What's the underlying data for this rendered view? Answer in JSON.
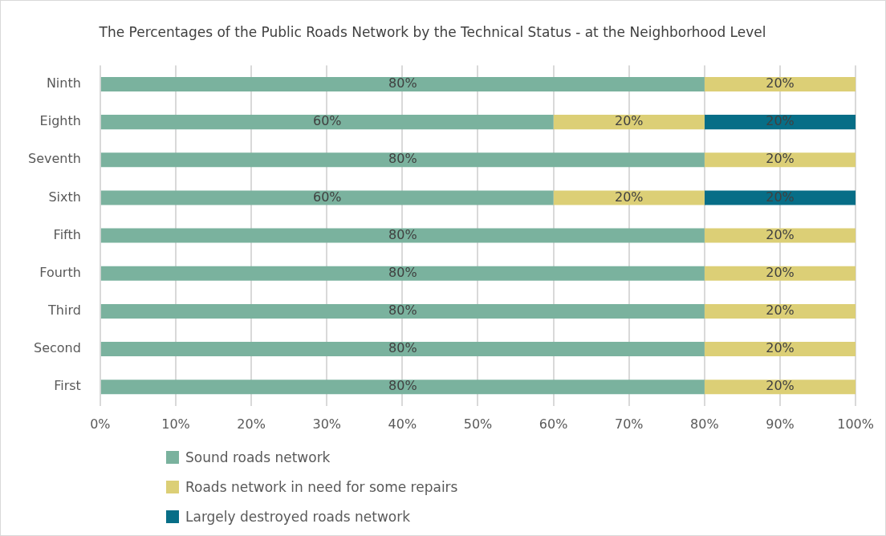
{
  "chart_data": {
    "type": "bar",
    "orientation": "horizontal",
    "stacked": true,
    "title": "The Percentages of the Public Roads Network by the Technical Status - at the Neighborhood Level",
    "categories": [
      "Ninth",
      "Eighth",
      "Seventh",
      "Sixth",
      "Fifth",
      "Fourth",
      "Third",
      "Second",
      "First"
    ],
    "series": [
      {
        "name": "Sound roads network",
        "color": "#7ab29e",
        "values": [
          80,
          60,
          80,
          60,
          80,
          80,
          80,
          80,
          80
        ],
        "value_labels": [
          "80%",
          "60%",
          "80%",
          "60%",
          "80%",
          "80%",
          "80%",
          "80%",
          "80%"
        ]
      },
      {
        "name": "Roads network in need for some repairs",
        "color": "#dccf76",
        "values": [
          20,
          20,
          20,
          20,
          20,
          20,
          20,
          20,
          20
        ],
        "value_labels": [
          "20%",
          "20%",
          "20%",
          "20%",
          "20%",
          "20%",
          "20%",
          "20%",
          "20%"
        ]
      },
      {
        "name": "Largely destroyed roads network",
        "color": "#076e87",
        "values": [
          null,
          20,
          null,
          20,
          null,
          null,
          null,
          null,
          null
        ],
        "value_labels": [
          null,
          "20%",
          null,
          "20%",
          null,
          null,
          null,
          null,
          null
        ]
      }
    ],
    "xlim": [
      0,
      100
    ],
    "xticks": [
      {
        "value": 0,
        "label": "0%"
      },
      {
        "value": 10,
        "label": "10%"
      },
      {
        "value": 20,
        "label": "20%"
      },
      {
        "value": 30,
        "label": "30%"
      },
      {
        "value": 40,
        "label": "40%"
      },
      {
        "value": 50,
        "label": "50%"
      },
      {
        "value": 60,
        "label": "60%"
      },
      {
        "value": 70,
        "label": "70%"
      },
      {
        "value": 80,
        "label": "80%"
      },
      {
        "value": 90,
        "label": "90%"
      },
      {
        "value": 100,
        "label": "100%"
      }
    ],
    "grid": "x",
    "legend": "bottom left"
  }
}
